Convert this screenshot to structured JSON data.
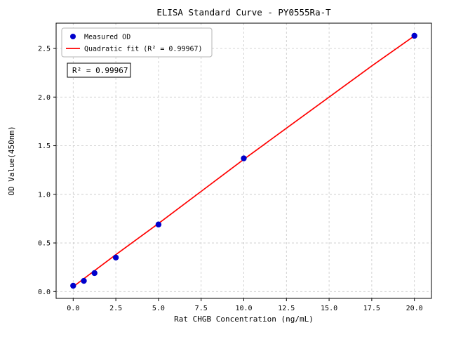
{
  "figure": {
    "background": "#ffffff"
  },
  "chart_data": {
    "type": "scatter",
    "title": "ELISA Standard Curve - PY0555Ra-T",
    "xlabel": "Rat CHGB Concentration (ng/mL)",
    "ylabel": "OD Value(450nm)",
    "xlim": [
      -1,
      21
    ],
    "ylim": [
      -0.07,
      2.76
    ],
    "grid": true,
    "legend_position": "upper left",
    "xticks": {
      "values": [
        0,
        2.5,
        5,
        7.5,
        10,
        12.5,
        15,
        17.5,
        20
      ],
      "labels": [
        "0.0",
        "2.5",
        "5.0",
        "7.5",
        "10.0",
        "12.5",
        "15.0",
        "17.5",
        "20.0"
      ]
    },
    "yticks": {
      "values": [
        0,
        0.5,
        1,
        1.5,
        2,
        2.5
      ],
      "labels": [
        "0.0",
        "0.5",
        "1.0",
        "1.5",
        "2.0",
        "2.5"
      ]
    },
    "colors": {
      "points": "#0000cc",
      "fit_line": "#ff0000",
      "grid": "#c8c8c8",
      "axes": "#000000",
      "legend_border": "#b5b5b5"
    },
    "legend": [
      {
        "label": "Measured OD",
        "marker": "point",
        "color": "#0000cc"
      },
      {
        "label": "Quadratic fit (R² = 0.99967)",
        "marker": "line",
        "color": "#ff0000"
      }
    ],
    "annotation": "R² = 0.99967",
    "series": [
      {
        "name": "Measured OD",
        "type": "scatter",
        "color": "#0000cc",
        "x": [
          0,
          0.625,
          1.25,
          2.5,
          5,
          10,
          20
        ],
        "y": [
          0.06,
          0.11,
          0.19,
          0.35,
          0.69,
          1.37,
          2.63
        ]
      },
      {
        "name": "Quadratic fit",
        "type": "line",
        "color": "#ff0000",
        "x": [
          0,
          2.5,
          5,
          7.5,
          10,
          12.5,
          15,
          17.5,
          20
        ],
        "y": [
          0.05,
          0.38,
          0.7,
          1.03,
          1.36,
          1.68,
          2.0,
          2.32,
          2.63
        ]
      }
    ]
  }
}
